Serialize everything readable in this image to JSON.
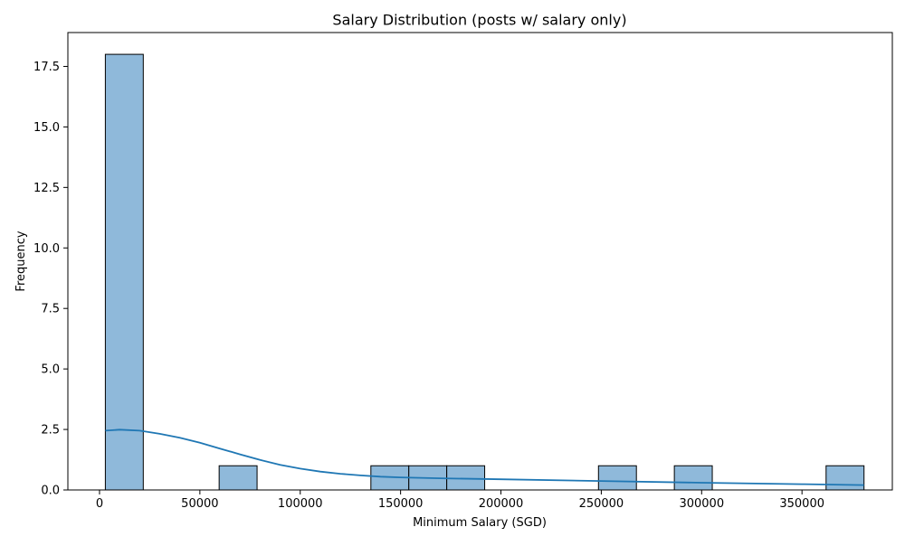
{
  "chart_data": {
    "type": "bar",
    "title": "Salary Distribution (posts w/ salary only)",
    "xlabel": "Minimum Salary (SGD)",
    "ylabel": "Frequency",
    "xlim": [
      -15770,
      395010
    ],
    "ylim": [
      0,
      18.9
    ],
    "xticks": [
      0,
      50000,
      100000,
      150000,
      200000,
      250000,
      300000,
      350000
    ],
    "xtick_labels": [
      "0",
      "50000",
      "100000",
      "150000",
      "200000",
      "250000",
      "300000",
      "350000"
    ],
    "yticks": [
      0,
      2.5,
      5,
      7.5,
      10,
      12.5,
      15,
      17.5
    ],
    "ytick_labels": [
      "0.0",
      "2.5",
      "5.0",
      "7.5",
      "10.0",
      "12.5",
      "15.0",
      "17.5"
    ],
    "bins": [
      {
        "x0": 2900,
        "x1": 21800,
        "count": 18
      },
      {
        "x0": 59600,
        "x1": 78500,
        "count": 1
      },
      {
        "x0": 135200,
        "x1": 154100,
        "count": 1
      },
      {
        "x0": 154100,
        "x1": 173000,
        "count": 1
      },
      {
        "x0": 173000,
        "x1": 191900,
        "count": 1
      },
      {
        "x0": 248600,
        "x1": 267500,
        "count": 1
      },
      {
        "x0": 286400,
        "x1": 305300,
        "count": 1
      },
      {
        "x0": 362000,
        "x1": 380900,
        "count": 1
      }
    ],
    "kde": {
      "x": [
        2900,
        10000,
        20000,
        30000,
        40000,
        50000,
        60000,
        70000,
        80000,
        90000,
        100000,
        110000,
        120000,
        130000,
        140000,
        150000,
        170000,
        200000,
        250000,
        300000,
        350000,
        380900
      ],
      "y": [
        2.45,
        2.49,
        2.45,
        2.32,
        2.16,
        1.95,
        1.71,
        1.47,
        1.24,
        1.04,
        0.88,
        0.76,
        0.67,
        0.6,
        0.55,
        0.52,
        0.48,
        0.44,
        0.37,
        0.3,
        0.24,
        0.2
      ]
    },
    "grid": false,
    "legend": "none",
    "colors": {
      "bar_fill": "#8fb9da",
      "bar_edge": "#000000",
      "kde_line": "#1f77b4",
      "axes": "#000000"
    }
  }
}
